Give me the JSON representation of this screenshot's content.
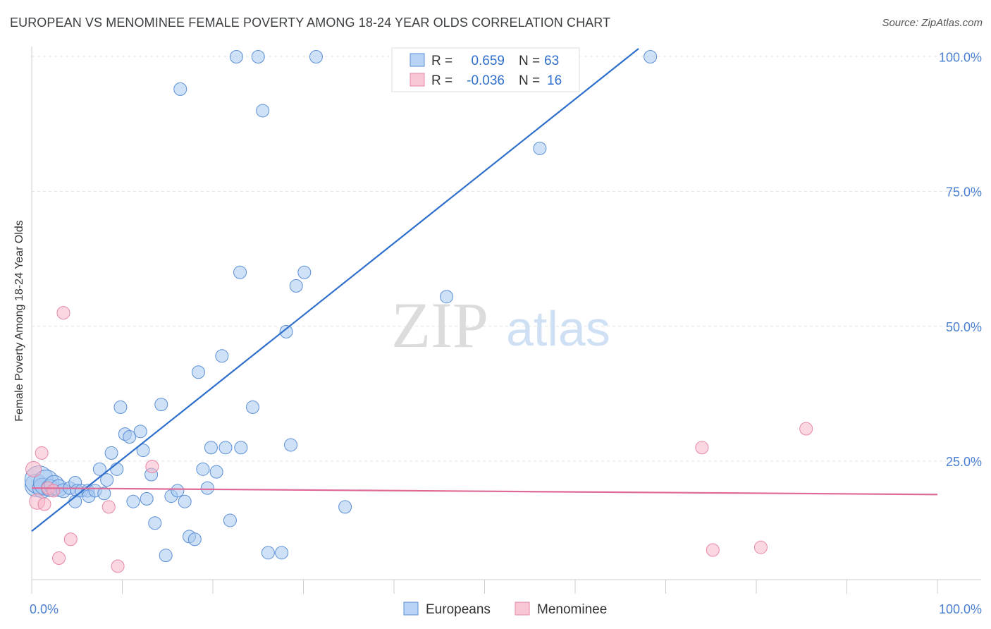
{
  "title": "EUROPEAN VS MENOMINEE FEMALE POVERTY AMONG 18-24 YEAR OLDS CORRELATION CHART",
  "source": "Source: ZipAtlas.com",
  "watermark": {
    "zip": "ZIP",
    "atlas": "atlas"
  },
  "colors": {
    "europeans_fill": "#a8c8f0",
    "europeans_stroke": "#5b8fd6",
    "europeans_line": "#2f6fcc",
    "menominee_fill": "#f7b6c8",
    "menominee_stroke": "#e589a6",
    "menominee_line": "#e06a97",
    "axis_text": "#4a7fd0"
  },
  "legend": {
    "rows": [
      {
        "r_label": "R =",
        "r_value": "0.659",
        "n_label": "N =",
        "n_value": "63"
      },
      {
        "r_label": "R =",
        "r_value": "-0.036",
        "n_label": "N =",
        "n_value": "16"
      }
    ]
  },
  "chart_data": {
    "type": "scatter",
    "title": "EUROPEAN VS MENOMINEE FEMALE POVERTY AMONG 18-24 YEAR OLDS CORRELATION CHART",
    "xlabel": "",
    "ylabel": "Female Poverty Among 18-24 Year Olds",
    "xlim": [
      0,
      100
    ],
    "ylim": [
      0,
      102
    ],
    "x_tick_labels": [
      "0.0%",
      "100.0%"
    ],
    "y_tick_labels": [
      "25.0%",
      "50.0%",
      "75.0%",
      "100.0%"
    ],
    "y_ticks": [
      25,
      50,
      75,
      100
    ],
    "legend_entries": [
      "Europeans",
      "Menominee"
    ],
    "series": [
      {
        "name": "Europeans",
        "r": 0.659,
        "n": 63,
        "trend": {
          "x": [
            0,
            67
          ],
          "y": [
            12.0,
            101.5
          ]
        },
        "points": [
          {
            "x": 0.5,
            "y": 20.5,
            "s": 16
          },
          {
            "x": 0.8,
            "y": 21.5,
            "s": 20
          },
          {
            "x": 1.2,
            "y": 20.0,
            "s": 14
          },
          {
            "x": 1.6,
            "y": 21.0,
            "s": 18
          },
          {
            "x": 2.0,
            "y": 20.0,
            "s": 12
          },
          {
            "x": 2.5,
            "y": 20.5,
            "s": 14
          },
          {
            "x": 3.0,
            "y": 20.0,
            "s": 12
          },
          {
            "x": 3.5,
            "y": 19.5,
            "s": 10
          },
          {
            "x": 4.2,
            "y": 20.0,
            "s": 9
          },
          {
            "x": 4.8,
            "y": 21.0,
            "s": 9
          },
          {
            "x": 5.0,
            "y": 19.5,
            "s": 9
          },
          {
            "x": 4.8,
            "y": 17.5,
            "s": 9
          },
          {
            "x": 5.5,
            "y": 19.5,
            "s": 9
          },
          {
            "x": 6.2,
            "y": 19.5,
            "s": 9
          },
          {
            "x": 6.3,
            "y": 18.5,
            "s": 9
          },
          {
            "x": 7.0,
            "y": 19.5,
            "s": 9
          },
          {
            "x": 7.5,
            "y": 23.5,
            "s": 9
          },
          {
            "x": 8.0,
            "y": 19.0,
            "s": 9
          },
          {
            "x": 8.3,
            "y": 21.5,
            "s": 9
          },
          {
            "x": 8.8,
            "y": 26.5,
            "s": 9
          },
          {
            "x": 9.4,
            "y": 23.5,
            "s": 9
          },
          {
            "x": 9.8,
            "y": 35.0,
            "s": 9
          },
          {
            "x": 10.3,
            "y": 30.0,
            "s": 9
          },
          {
            "x": 10.8,
            "y": 29.5,
            "s": 9
          },
          {
            "x": 11.2,
            "y": 17.5,
            "s": 9
          },
          {
            "x": 12.0,
            "y": 30.5,
            "s": 9
          },
          {
            "x": 12.3,
            "y": 27.0,
            "s": 9
          },
          {
            "x": 12.7,
            "y": 18.0,
            "s": 9
          },
          {
            "x": 13.2,
            "y": 22.5,
            "s": 9
          },
          {
            "x": 13.6,
            "y": 13.5,
            "s": 9
          },
          {
            "x": 14.3,
            "y": 35.5,
            "s": 9
          },
          {
            "x": 14.8,
            "y": 7.5,
            "s": 9
          },
          {
            "x": 15.4,
            "y": 18.5,
            "s": 9
          },
          {
            "x": 16.1,
            "y": 19.5,
            "s": 9
          },
          {
            "x": 16.4,
            "y": 94.0,
            "s": 9
          },
          {
            "x": 16.9,
            "y": 17.5,
            "s": 9
          },
          {
            "x": 17.4,
            "y": 11.0,
            "s": 9
          },
          {
            "x": 18.0,
            "y": 10.5,
            "s": 9
          },
          {
            "x": 18.4,
            "y": 41.5,
            "s": 9
          },
          {
            "x": 18.9,
            "y": 23.5,
            "s": 9
          },
          {
            "x": 19.4,
            "y": 20.0,
            "s": 9
          },
          {
            "x": 19.8,
            "y": 27.5,
            "s": 9
          },
          {
            "x": 20.4,
            "y": 23.0,
            "s": 9
          },
          {
            "x": 21.0,
            "y": 44.5,
            "s": 9
          },
          {
            "x": 21.4,
            "y": 27.5,
            "s": 9
          },
          {
            "x": 21.9,
            "y": 14.0,
            "s": 9
          },
          {
            "x": 22.6,
            "y": 100.0,
            "s": 9
          },
          {
            "x": 23.0,
            "y": 60.0,
            "s": 9
          },
          {
            "x": 23.1,
            "y": 27.5,
            "s": 9
          },
          {
            "x": 24.4,
            "y": 35.0,
            "s": 9
          },
          {
            "x": 25.0,
            "y": 100.0,
            "s": 9
          },
          {
            "x": 25.5,
            "y": 90.0,
            "s": 9
          },
          {
            "x": 26.1,
            "y": 8.0,
            "s": 9
          },
          {
            "x": 27.6,
            "y": 8.0,
            "s": 9
          },
          {
            "x": 28.1,
            "y": 49.0,
            "s": 9
          },
          {
            "x": 28.6,
            "y": 28.0,
            "s": 9
          },
          {
            "x": 29.2,
            "y": 57.5,
            "s": 9
          },
          {
            "x": 30.1,
            "y": 60.0,
            "s": 9
          },
          {
            "x": 31.4,
            "y": 100.0,
            "s": 9
          },
          {
            "x": 34.6,
            "y": 16.5,
            "s": 9
          },
          {
            "x": 45.8,
            "y": 55.5,
            "s": 9
          },
          {
            "x": 56.1,
            "y": 83.0,
            "s": 9
          },
          {
            "x": 68.3,
            "y": 100.0,
            "s": 9
          }
        ]
      },
      {
        "name": "Menominee",
        "r": -0.036,
        "n": 16,
        "trend": {
          "x": [
            0,
            100
          ],
          "y": [
            20.0,
            18.8
          ]
        },
        "points": [
          {
            "x": 0.2,
            "y": 23.5,
            "s": 11
          },
          {
            "x": 0.6,
            "y": 17.5,
            "s": 11
          },
          {
            "x": 1.1,
            "y": 26.5,
            "s": 9
          },
          {
            "x": 1.4,
            "y": 17.0,
            "s": 9
          },
          {
            "x": 1.8,
            "y": 20.0,
            "s": 9
          },
          {
            "x": 2.4,
            "y": 19.5,
            "s": 9
          },
          {
            "x": 3.0,
            "y": 7.0,
            "s": 9
          },
          {
            "x": 3.5,
            "y": 52.5,
            "s": 9
          },
          {
            "x": 4.3,
            "y": 10.5,
            "s": 9
          },
          {
            "x": 8.5,
            "y": 16.5,
            "s": 9
          },
          {
            "x": 9.5,
            "y": 5.5,
            "s": 9
          },
          {
            "x": 13.3,
            "y": 24.0,
            "s": 9
          },
          {
            "x": 74.0,
            "y": 27.5,
            "s": 9
          },
          {
            "x": 75.2,
            "y": 8.5,
            "s": 9
          },
          {
            "x": 80.5,
            "y": 9.0,
            "s": 9
          },
          {
            "x": 85.5,
            "y": 31.0,
            "s": 9
          }
        ]
      }
    ]
  }
}
